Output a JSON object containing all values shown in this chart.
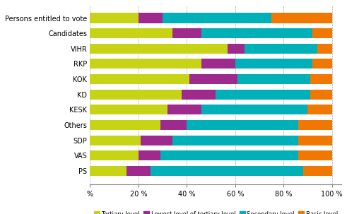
{
  "categories": [
    "Persons entitled to vote",
    "Candidates",
    "VIHR",
    "RKP",
    "KOK",
    "KD",
    "KESK",
    "Others",
    "SDP",
    "VAS",
    "PS"
  ],
  "tertiary": [
    20,
    34,
    57,
    46,
    41,
    38,
    32,
    29,
    21,
    20,
    15
  ],
  "lowest_tertiary": [
    10,
    12,
    7,
    14,
    20,
    14,
    14,
    11,
    13,
    9,
    10
  ],
  "secondary": [
    45,
    46,
    30,
    32,
    30,
    39,
    44,
    46,
    52,
    57,
    63
  ],
  "basic": [
    25,
    8,
    6,
    8,
    9,
    9,
    10,
    14,
    14,
    14,
    12
  ],
  "colors": {
    "tertiary": "#c7d416",
    "lowest_tertiary": "#9e2a8d",
    "secondary": "#00b0b9",
    "basic": "#f07800"
  },
  "legend_labels": [
    "Tertiary level",
    "Lowest level of tertiary level",
    "Secondary level",
    "Basic level"
  ],
  "xtick_labels": [
    "%",
    "20 %",
    "40 %",
    "60 %",
    "80 %",
    "100 %"
  ],
  "xtick_vals": [
    0,
    20,
    40,
    60,
    80,
    100
  ],
  "figsize": [
    4.91,
    3.03
  ],
  "dpi": 100
}
